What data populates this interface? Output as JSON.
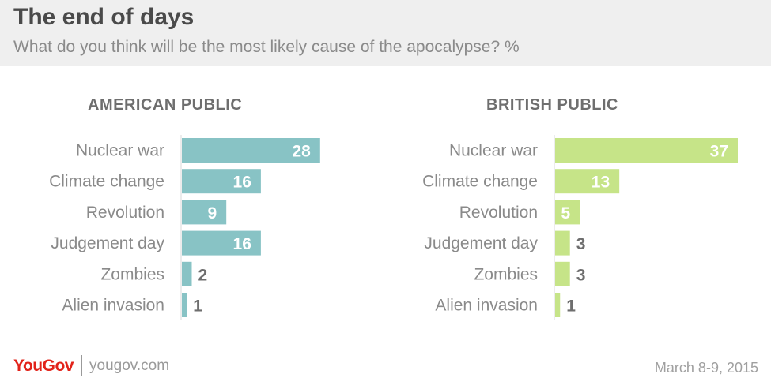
{
  "header": {
    "title": "The end of days",
    "subtitle": "What do you think will be the most likely cause of the apocalypse? %"
  },
  "colors": {
    "american": "#88c3c5",
    "british": "#c6e488",
    "value_inside": "#ffffff",
    "value_outside": "#6e6e6e",
    "brand": "#e2231a"
  },
  "chart_data": [
    {
      "type": "bar",
      "orientation": "horizontal",
      "title": "AMERICAN PUBLIC",
      "categories": [
        "Nuclear war",
        "Climate change",
        "Revolution",
        "Judgement day",
        "Zombies",
        "Alien invasion"
      ],
      "values": [
        28,
        16,
        9,
        16,
        2,
        1
      ],
      "value_labels": [
        "28",
        "16",
        "9",
        "16",
        "2",
        "1"
      ],
      "xlim": [
        0,
        37
      ],
      "grid": false
    },
    {
      "type": "bar",
      "orientation": "horizontal",
      "title": "BRITISH PUBLIC",
      "categories": [
        "Nuclear war",
        "Climate change",
        "Revolution",
        "Judgement day",
        "Zombies",
        "Alien invasion"
      ],
      "values": [
        37,
        13,
        5,
        3,
        3,
        1
      ],
      "value_labels": [
        "37",
        "13",
        "5",
        "3",
        "3",
        "1"
      ],
      "xlim": [
        0,
        37
      ],
      "grid": false
    }
  ],
  "footer": {
    "brand": "YouGov",
    "site": "yougov.com",
    "date": "March 8-9, 2015"
  }
}
